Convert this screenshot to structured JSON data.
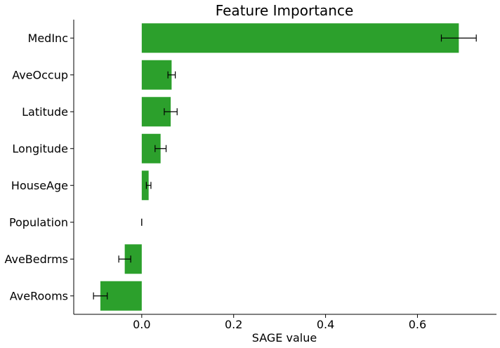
{
  "chart_data": {
    "type": "bar",
    "orientation": "horizontal",
    "title": "Feature Importance",
    "xlabel": "SAGE value",
    "ylabel": "",
    "xlim": [
      -0.148,
      0.772
    ],
    "xticks": [
      0.0,
      0.2,
      0.4,
      0.6
    ],
    "xtick_labels": [
      "0.0",
      "0.2",
      "0.4",
      "0.6"
    ],
    "categories": [
      "MedInc",
      "AveOccup",
      "Latitude",
      "Longitude",
      "HouseAge",
      "Population",
      "AveBedrms",
      "AveRooms"
    ],
    "values": [
      0.69,
      0.065,
      0.063,
      0.041,
      0.015,
      0.0,
      -0.037,
      -0.09
    ],
    "error": [
      0.038,
      0.008,
      0.014,
      0.012,
      0.005,
      0.0,
      0.013,
      0.015
    ],
    "bar_color": "#2ca02c",
    "error_color": "#000000",
    "grid": false,
    "spines": [
      "left",
      "bottom"
    ]
  }
}
